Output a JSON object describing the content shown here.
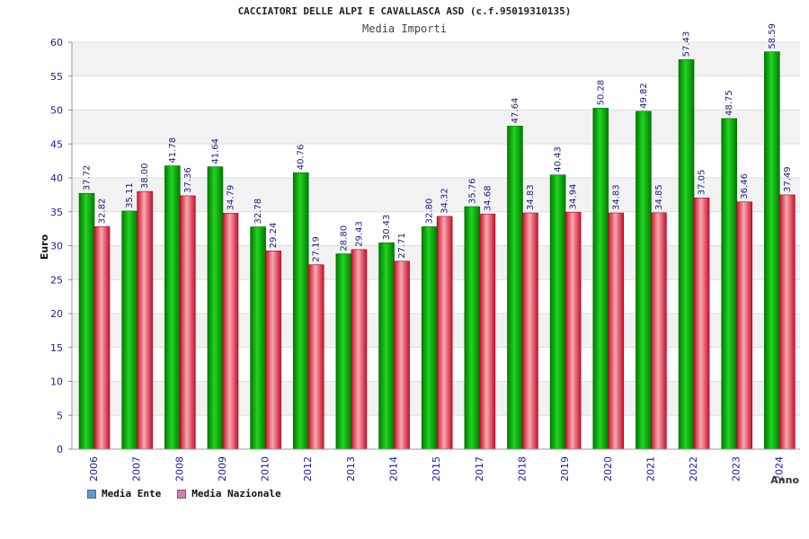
{
  "chart_data": {
    "type": "bar",
    "title": "CACCIATORI DELLE ALPI E CAVALLASCA ASD (c.f.95019310135)",
    "subtitle": "Media Importi",
    "xlabel": "Anno",
    "ylabel": "Euro",
    "ylim": [
      0,
      60
    ],
    "yticks": [
      "0",
      "5",
      "10",
      "15",
      "20",
      "25",
      "30",
      "35",
      "40",
      "45",
      "50",
      "55",
      "60"
    ],
    "categories": [
      "2006",
      "2007",
      "2008",
      "2009",
      "2010",
      "2012",
      "2013",
      "2014",
      "2015",
      "2017",
      "2018",
      "2019",
      "2020",
      "2021",
      "2022",
      "2023",
      "2024"
    ],
    "series": [
      {
        "name": "Media Ente",
        "color": "#1fbf1f",
        "values": [
          37.72,
          35.11,
          41.78,
          41.64,
          32.78,
          40.76,
          28.8,
          30.43,
          32.8,
          35.76,
          47.64,
          40.43,
          50.28,
          49.82,
          57.43,
          48.75,
          58.59
        ],
        "labels": [
          "37.72",
          "35.11",
          "41.78",
          "41.64",
          "32.78",
          "40.76",
          "28.80",
          "30.43",
          "32.80",
          "35.76",
          "47.64",
          "40.43",
          "50.28",
          "49.82",
          "57.43",
          "48.75",
          "58.59"
        ]
      },
      {
        "name": "Media Nazionale",
        "color": "#e8474f",
        "values": [
          32.82,
          38.0,
          37.36,
          34.79,
          29.24,
          27.19,
          29.43,
          27.71,
          34.32,
          34.68,
          34.83,
          34.94,
          34.83,
          34.85,
          37.05,
          36.46,
          37.49
        ],
        "labels": [
          "32.82",
          "38.00",
          "37.36",
          "34.79",
          "29.24",
          "27.19",
          "29.43",
          "27.71",
          "34.32",
          "34.68",
          "34.83",
          "34.94",
          "34.83",
          "34.85",
          "37.05",
          "36.46",
          "37.49"
        ]
      }
    ],
    "legend": {
      "position": "bottom-left",
      "items": [
        {
          "label": "Media Ente",
          "color": "#5b9bd5"
        },
        {
          "label": "Media Nazionale",
          "color": "#d67ab8"
        }
      ]
    }
  }
}
